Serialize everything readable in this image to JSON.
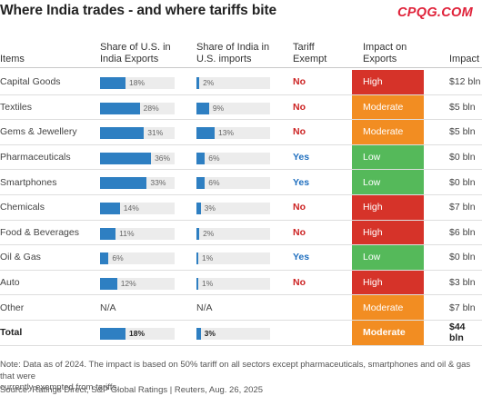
{
  "title": "Where India trades - and where tariffs bite",
  "watermark": "CPQG.COM",
  "colors": {
    "bar": "#2e7fc2",
    "High": "#d63329",
    "Moderate": "#f28d22",
    "Low": "#55b95a",
    "no": "#cc2222",
    "yes": "#1f6fbf"
  },
  "headers": {
    "items": "Items",
    "us_share_l1": "Share of U.S. in",
    "us_share_l2": "India Exports",
    "india_share_l1": "Share of India in",
    "india_share_l2": "U.S. imports",
    "exempt_l1": "Tariff",
    "exempt_l2": "Exempt",
    "impact_l1": "Impact on",
    "impact_l2": "Exports",
    "impact_val": "Impact"
  },
  "rows": [
    {
      "item": "Capital Goods",
      "us_pct": 18,
      "us_label": "18%",
      "in_pct": 2,
      "in_label": "2%",
      "exempt": "No",
      "impact": "High",
      "value": "$12 bln"
    },
    {
      "item": "Textiles",
      "us_pct": 28,
      "us_label": "28%",
      "in_pct": 9,
      "in_label": "9%",
      "exempt": "No",
      "impact": "Moderate",
      "value": "$5 bln"
    },
    {
      "item": "Gems & Jewellery",
      "us_pct": 31,
      "us_label": "31%",
      "in_pct": 13,
      "in_label": "13%",
      "exempt": "No",
      "impact": "Moderate",
      "value": "$5 bln"
    },
    {
      "item": "Pharmaceuticals",
      "us_pct": 36,
      "us_label": "36%",
      "in_pct": 6,
      "in_label": "6%",
      "exempt": "Yes",
      "impact": "Low",
      "value": "$0 bln"
    },
    {
      "item": "Smartphones",
      "us_pct": 33,
      "us_label": "33%",
      "in_pct": 6,
      "in_label": "6%",
      "exempt": "Yes",
      "impact": "Low",
      "value": "$0 bln"
    },
    {
      "item": "Chemicals",
      "us_pct": 14,
      "us_label": "14%",
      "in_pct": 3,
      "in_label": "3%",
      "exempt": "No",
      "impact": "High",
      "value": "$7 bln"
    },
    {
      "item": "Food & Beverages",
      "us_pct": 11,
      "us_label": "11%",
      "in_pct": 2,
      "in_label": "2%",
      "exempt": "No",
      "impact": "High",
      "value": "$6 bln"
    },
    {
      "item": "Oil & Gas",
      "us_pct": 6,
      "us_label": "6%",
      "in_pct": 1,
      "in_label": "1%",
      "exempt": "Yes",
      "impact": "Low",
      "value": "$0 bln"
    },
    {
      "item": "Auto",
      "us_pct": 12,
      "us_label": "12%",
      "in_pct": 1,
      "in_label": "1%",
      "exempt": "No",
      "impact": "High",
      "value": "$3 bln"
    },
    {
      "item": "Other",
      "us_pct": null,
      "us_label": "N/A",
      "in_pct": null,
      "in_label": "N/A",
      "exempt": "",
      "impact": "Moderate",
      "value": "$7 bln"
    }
  ],
  "total": {
    "item": "Total",
    "us_pct": 18,
    "us_label": "18%",
    "in_pct": 3,
    "in_label": "3%",
    "exempt": "",
    "impact": "Moderate",
    "value": "$44 bln"
  },
  "footnote": {
    "line1": "Note: Data as of 2024. The impact is based on 50% tariff on all sectors except pharmaceuticals, smartphones and oil & gas that were",
    "line2": "currently exempted from tariffs.",
    "source": "Source: Ratings Direct, S&P Global Ratings | Reuters, Aug. 26, 2025"
  }
}
